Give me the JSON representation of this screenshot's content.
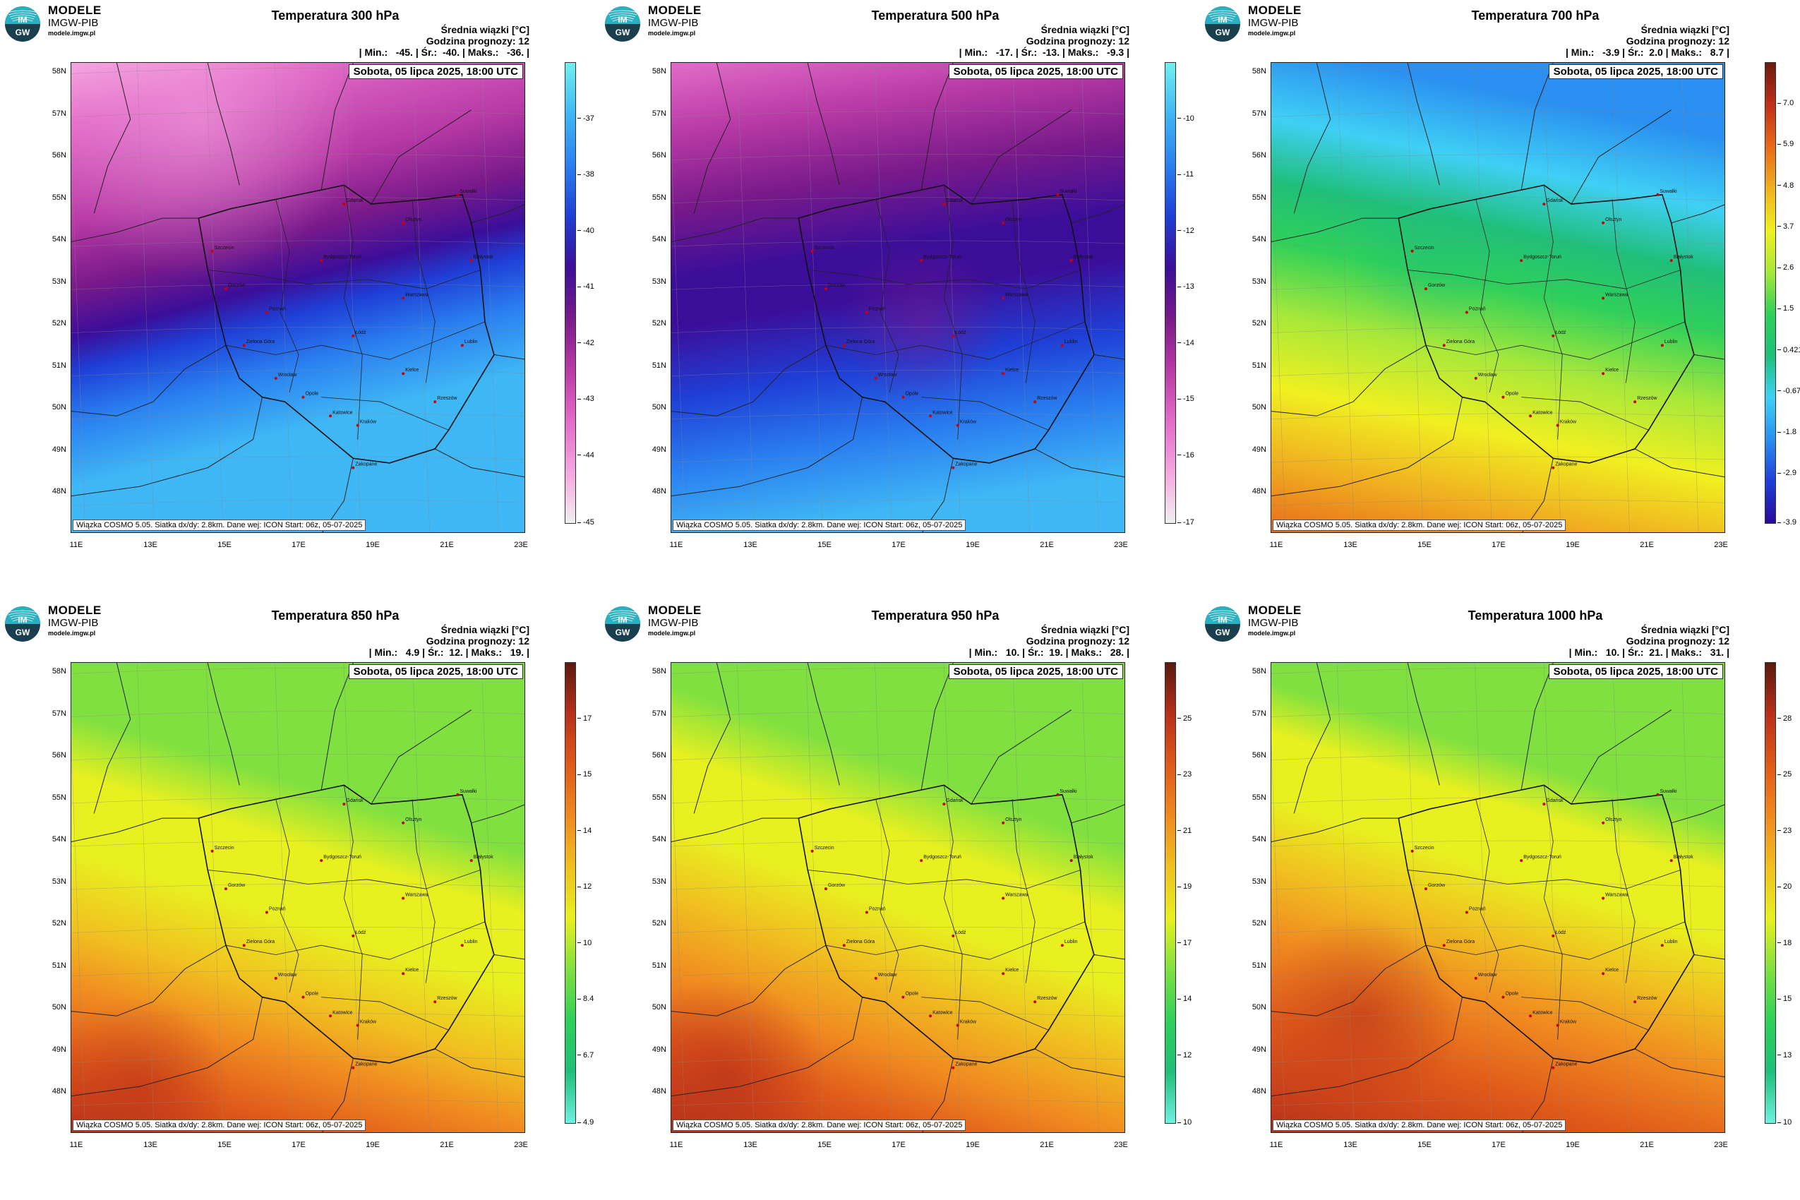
{
  "brand": {
    "name": "MODELE",
    "org": "IMGW-PIB",
    "url": "modele.imgw.pl",
    "logo_text_top": "IM",
    "logo_text_bottom": "GW"
  },
  "common": {
    "subtitle": "Średnia wiązki [°C]",
    "forecast_hour": "Godzina prognozy: 12",
    "date": "Sobota, 05 lipca 2025, 18:00 UTC",
    "footnote": "Wiązka COSMO 5.05. Siatka dx/dy: 2.8km. Dane wej: ICON Start: 06z, 05-07-2025",
    "stat_min_label": "| Min.:",
    "stat_avg_label": "| Śr.:",
    "stat_max_label": "| Maks.:"
  },
  "lat_labels": [
    "58N",
    "57N",
    "56N",
    "55N",
    "54N",
    "53N",
    "52N",
    "51N",
    "50N",
    "49N",
    "48N"
  ],
  "lon_labels": [
    "11E",
    "13E",
    "15E",
    "17E",
    "19E",
    "21E",
    "23E"
  ],
  "panels": [
    {
      "title": "Temperatura 300 hPa",
      "min": "-45.",
      "avg": "-40.",
      "max": "-36.",
      "colorbar_ticks": [
        "-37",
        "-38",
        "-40",
        "-41",
        "-42",
        "-43",
        "-44",
        "-45"
      ],
      "palette": [
        "#f0f0f0",
        "#f4a6e0",
        "#e36bc8",
        "#b83aa6",
        "#7a1a8a",
        "#3b0e99",
        "#1f3fd6",
        "#2a7ff0",
        "#3fb7f5",
        "#6ff0f0"
      ]
    },
    {
      "title": "Temperatura 500 hPa",
      "min": "-17.",
      "avg": "-13.",
      "max": "-9.3",
      "colorbar_ticks": [
        "-10",
        "-11",
        "-12",
        "-13",
        "-14",
        "-15",
        "-16",
        "-17"
      ],
      "palette": [
        "#f0f0f0",
        "#f4a6e0",
        "#e36bc8",
        "#b83aa6",
        "#7a1a8a",
        "#3b0e99",
        "#1f3fd6",
        "#2a7ff0",
        "#3fb7f5",
        "#6ff0f0"
      ]
    },
    {
      "title": "Temperatura 700 hPa",
      "min": "-3.9",
      "avg": "2.0",
      "max": "8.7",
      "colorbar_ticks": [
        "7.0",
        "5.9",
        "4.8",
        "3.7",
        "2.6",
        "1.5",
        "0.421",
        "-0.671",
        "-1.8",
        "-2.9",
        "-3.9"
      ],
      "palette": [
        "#2a0a9a",
        "#1f3fd6",
        "#2a8ff0",
        "#3fd0f5",
        "#1fbf7a",
        "#2fd05a",
        "#a8e83a",
        "#f0f020",
        "#f0b020",
        "#e86a1a",
        "#c0301a",
        "#6a1a10"
      ]
    },
    {
      "title": "Temperatura 850 hPa",
      "min": "4.9",
      "avg": "12.",
      "max": "19.",
      "colorbar_ticks": [
        "17",
        "15",
        "14",
        "12",
        "10",
        "8.4",
        "6.7",
        "4.9"
      ],
      "palette": [
        "#6ff0e0",
        "#1fbf7a",
        "#2fd05a",
        "#7fe040",
        "#e8f020",
        "#f0c020",
        "#f08a20",
        "#e05a1a",
        "#b8301a",
        "#5a1a10"
      ]
    },
    {
      "title": "Temperatura 950 hPa",
      "min": "10.",
      "avg": "19.",
      "max": "28.",
      "colorbar_ticks": [
        "25",
        "23",
        "21",
        "19",
        "17",
        "14",
        "12",
        "10"
      ],
      "palette": [
        "#6ff0e0",
        "#1fbf7a",
        "#2fd05a",
        "#7fe040",
        "#e8f020",
        "#f0c020",
        "#f08a20",
        "#e05a1a",
        "#b8301a",
        "#5a1a10"
      ]
    },
    {
      "title": "Temperatura 1000 hPa",
      "min": "10.",
      "avg": "21.",
      "max": "31.",
      "colorbar_ticks": [
        "28",
        "25",
        "23",
        "20",
        "18",
        "15",
        "13",
        "10"
      ],
      "palette": [
        "#6ff0e0",
        "#1fbf7a",
        "#2fd05a",
        "#7fe040",
        "#e8f020",
        "#f0c020",
        "#f08a20",
        "#e05a1a",
        "#b8301a",
        "#5a1a10"
      ]
    }
  ],
  "cities": [
    "Gdańsk",
    "Olsztyn",
    "Suwałki",
    "Szczecin",
    "Bydgoszcz-Toruń",
    "Białystok",
    "Gorzów",
    "Poznań",
    "Warszawa",
    "Zielona Góra",
    "Łódź",
    "Lublin",
    "Wrocław",
    "Kielce",
    "Opole",
    "Katowice",
    "Kraków",
    "Rzeszów",
    "Zakopane"
  ]
}
